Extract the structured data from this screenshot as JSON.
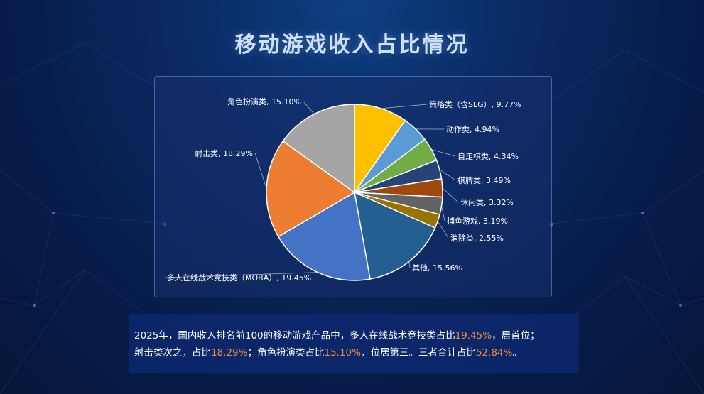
{
  "title": "移动游戏收入占比情况",
  "chart_data": {
    "type": "pie",
    "title": "",
    "slices": [
      {
        "label": "策略类（含SLG）, 9.77%",
        "value": 9.77,
        "color": "#FFC000"
      },
      {
        "label": "动作类, 4.94%",
        "value": 4.94,
        "color": "#5B9BD5"
      },
      {
        "label": "自走棋类, 4.34%",
        "value": 4.34,
        "color": "#70AD47"
      },
      {
        "label": "棋牌类, 3.49%",
        "value": 3.49,
        "color": "#264478"
      },
      {
        "label": "休闲类, 3.32%",
        "value": 3.32,
        "color": "#9E480E"
      },
      {
        "label": "捕鱼游戏, 3.19%",
        "value": 3.19,
        "color": "#636363"
      },
      {
        "label": "消除类, 2.55%",
        "value": 2.55,
        "color": "#997300"
      },
      {
        "label": "其他, 15.56%",
        "value": 15.56,
        "color": "#255E91"
      },
      {
        "label": "多人在线战术竞技类（MOBA）, 19.45%",
        "value": 19.45,
        "color": "#4472C4"
      },
      {
        "label": "射击类, 18.29%",
        "value": 18.29,
        "color": "#ED7D31"
      },
      {
        "label": "角色扮演类, 15.10%",
        "value": 15.1,
        "color": "#A5A5A5"
      }
    ]
  },
  "summary": {
    "line1_a": "2025年，国内收入排名前100的移动游戏产品中，多人在线战术竞技类占比",
    "line1_hl": "19.45%",
    "line1_b": "，居首位；",
    "line2_a": "射击类次之，占比",
    "line2_hl1": "18.29%",
    "line2_b": "；角色扮演类占比",
    "line2_hl2": "15.10%",
    "line2_c": "，位居第三。三者合计占比",
    "line2_hl3": "52.84%",
    "line2_d": "。"
  }
}
